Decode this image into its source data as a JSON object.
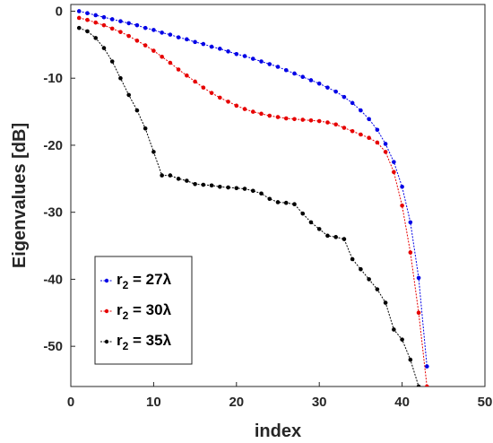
{
  "chart_data": {
    "type": "line",
    "xlabel": "index",
    "ylabel": "Eigenvalues [dB]",
    "xlim": [
      0,
      50
    ],
    "ylim": [
      -56,
      1
    ],
    "xticks": [
      "0",
      "10",
      "20",
      "30",
      "40",
      "50"
    ],
    "xtick_values": [
      0,
      10,
      20,
      30,
      40,
      50
    ],
    "yticks": [
      "0",
      "-10",
      "-20",
      "-30",
      "-40",
      "-50"
    ],
    "ytick_values": [
      0,
      -10,
      -20,
      -30,
      -40,
      -50
    ],
    "grid": false,
    "legend_position": "bottom-left",
    "series": [
      {
        "name": "r₂ = 27λ",
        "legend_main": "r",
        "legend_sub": "2",
        "legend_rest": " = 27λ",
        "color": "#0000e6",
        "x": [
          1,
          2,
          3,
          4,
          5,
          6,
          7,
          8,
          9,
          10,
          11,
          12,
          13,
          14,
          15,
          16,
          17,
          18,
          19,
          20,
          21,
          22,
          23,
          24,
          25,
          26,
          27,
          28,
          29,
          30,
          31,
          32,
          33,
          34,
          35,
          36,
          37,
          38,
          39,
          40,
          41,
          42,
          43
        ],
        "y": [
          0,
          -0.3,
          -0.6,
          -0.9,
          -1.2,
          -1.5,
          -1.8,
          -2.1,
          -2.5,
          -2.8,
          -3.2,
          -3.5,
          -3.9,
          -4.2,
          -4.6,
          -4.9,
          -5.3,
          -5.6,
          -6.0,
          -6.4,
          -6.7,
          -7.1,
          -7.5,
          -7.9,
          -8.3,
          -8.8,
          -9.3,
          -9.8,
          -10.3,
          -10.8,
          -11.4,
          -12.0,
          -12.8,
          -13.7,
          -14.8,
          -16.1,
          -17.7,
          -19.8,
          -22.5,
          -26.2,
          -31.5,
          -39.8,
          -53.0
        ]
      },
      {
        "name": "r₂ = 30λ",
        "legend_main": "r",
        "legend_sub": "2",
        "legend_rest": " = 30λ",
        "color": "#e60000",
        "x": [
          1,
          2,
          3,
          4,
          5,
          6,
          7,
          8,
          9,
          10,
          11,
          12,
          13,
          14,
          15,
          16,
          17,
          18,
          19,
          20,
          21,
          22,
          23,
          24,
          25,
          26,
          27,
          28,
          29,
          30,
          31,
          32,
          33,
          34,
          35,
          36,
          37,
          38,
          39,
          40,
          41,
          42,
          43
        ],
        "y": [
          -1.0,
          -1.3,
          -1.7,
          -2.1,
          -2.6,
          -3.1,
          -3.7,
          -4.4,
          -5.1,
          -5.9,
          -6.8,
          -7.7,
          -8.7,
          -9.6,
          -10.5,
          -11.4,
          -12.2,
          -12.9,
          -13.5,
          -14.1,
          -14.6,
          -15.0,
          -15.3,
          -15.6,
          -15.8,
          -16.0,
          -16.1,
          -16.2,
          -16.3,
          -16.4,
          -16.6,
          -16.9,
          -17.4,
          -17.9,
          -18.4,
          -18.9,
          -19.6,
          -21.0,
          -24.0,
          -29.0,
          -36.0,
          -45.0,
          -56.0
        ]
      },
      {
        "name": "r₂ = 35λ",
        "legend_main": "r",
        "legend_sub": "2",
        "legend_rest": " = 35λ",
        "color": "#000000",
        "x": [
          1,
          2,
          3,
          4,
          5,
          6,
          7,
          8,
          9,
          10,
          11,
          12,
          13,
          14,
          15,
          16,
          17,
          18,
          19,
          20,
          21,
          22,
          23,
          24,
          25,
          26,
          27,
          28,
          29,
          30,
          31,
          32,
          33,
          34,
          35,
          36,
          37,
          38,
          39,
          40,
          41,
          42
        ],
        "y": [
          -2.5,
          -3.0,
          -4.0,
          -5.5,
          -7.5,
          -10.0,
          -12.5,
          -14.8,
          -17.5,
          -21.0,
          -24.5,
          -24.5,
          -25.0,
          -25.3,
          -25.8,
          -25.9,
          -26.0,
          -26.2,
          -26.3,
          -26.4,
          -26.5,
          -26.8,
          -27.2,
          -28.0,
          -28.5,
          -28.6,
          -28.8,
          -30.2,
          -31.5,
          -32.5,
          -33.5,
          -33.7,
          -34.0,
          -37.0,
          -38.5,
          -40.0,
          -41.5,
          -43.5,
          -47.5,
          -49.0,
          -52.0,
          -56.0
        ]
      }
    ]
  }
}
